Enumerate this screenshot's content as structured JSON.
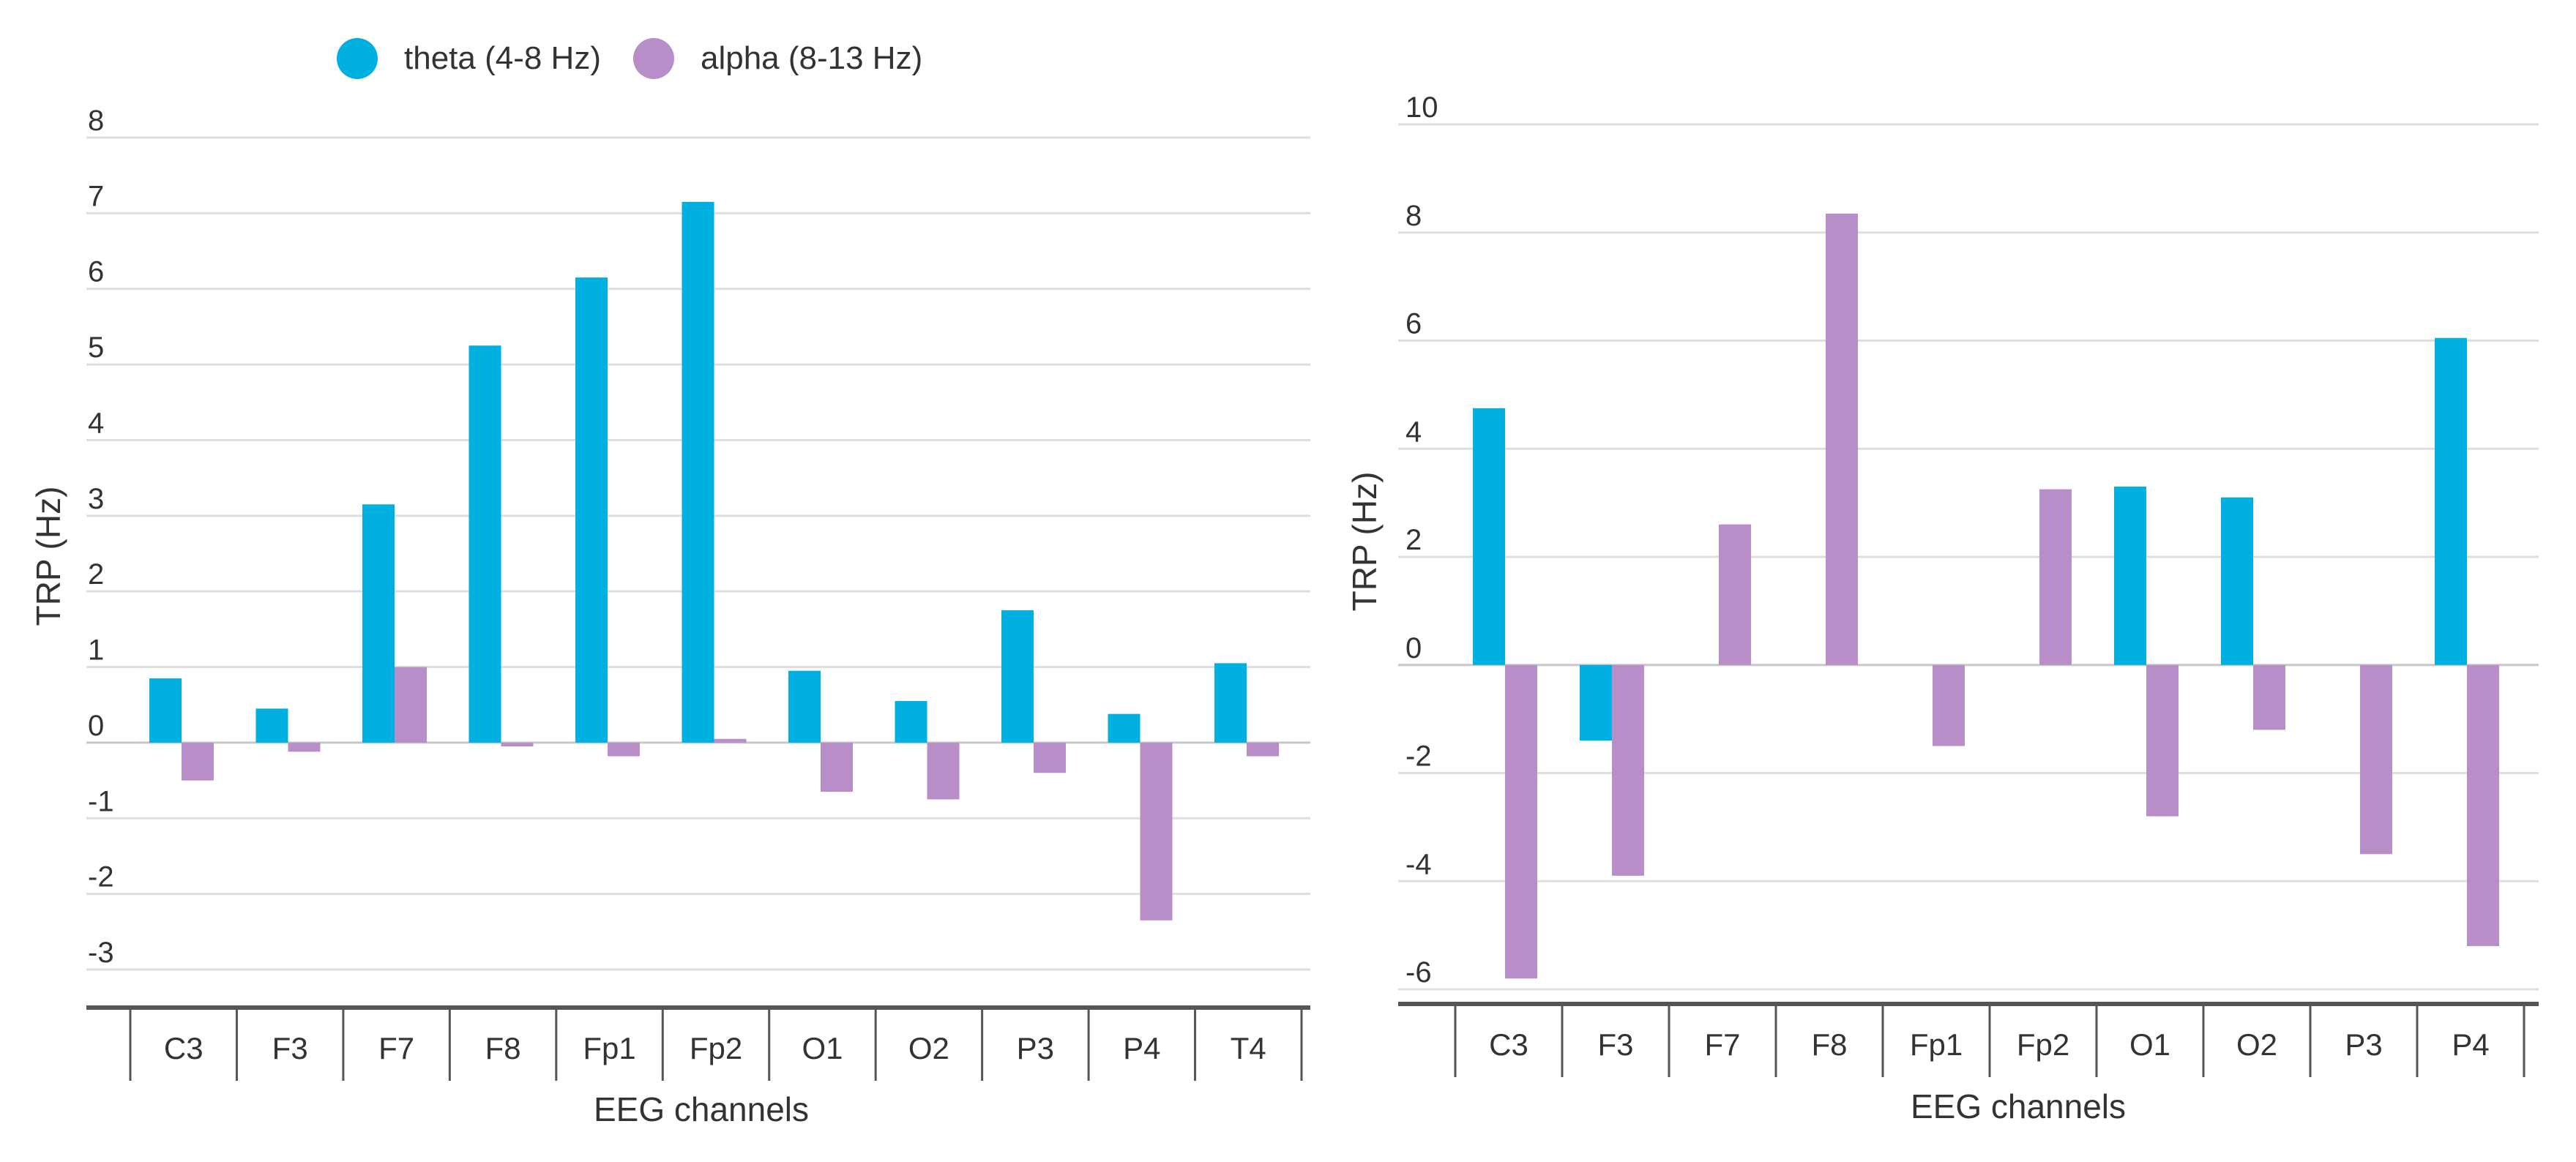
{
  "legend": {
    "items": [
      {
        "label": "theta (4-8 Hz)",
        "color": "#00b0e0"
      },
      {
        "label": "alpha (8-13 Hz)",
        "color": "#b88ec8"
      }
    ]
  },
  "chart_data": [
    {
      "type": "bar",
      "title": "",
      "xlabel": "EEG channels",
      "ylabel": "TRP (Hz)",
      "ylim": [
        -3,
        8
      ],
      "yticks": [
        8,
        7,
        6,
        5,
        4,
        3,
        2,
        1,
        0,
        -1,
        -2,
        -3
      ],
      "grid": true,
      "legend": "top",
      "categories": [
        "C3",
        "F3",
        "F7",
        "F8",
        "Fp1",
        "Fp2",
        "O1",
        "O2",
        "P3",
        "P4",
        "T4"
      ],
      "series": [
        {
          "name": "theta (4-8 Hz)",
          "color": "#00b0e0",
          "values": [
            0.85,
            0.45,
            3.15,
            5.25,
            6.15,
            7.15,
            0.95,
            0.55,
            1.75,
            0.38,
            1.05
          ]
        },
        {
          "name": "alpha (8-13 Hz)",
          "color": "#b88ec8",
          "values": [
            -0.5,
            -0.12,
            1.0,
            -0.05,
            -0.18,
            0.05,
            -0.65,
            -0.75,
            -0.4,
            -2.35,
            -0.18
          ]
        }
      ]
    },
    {
      "type": "bar",
      "title": "",
      "xlabel": "EEG channels",
      "ylabel": "TRP (Hz)",
      "ylim": [
        -6,
        10
      ],
      "yticks": [
        10,
        8,
        6,
        4,
        2,
        0,
        -2,
        -4,
        -6
      ],
      "grid": true,
      "legend": "top",
      "categories": [
        "C3",
        "F3",
        "F7",
        "F8",
        "Fp1",
        "Fp2",
        "O1",
        "O2",
        "P3",
        "P4"
      ],
      "series": [
        {
          "name": "theta (4-8 Hz)",
          "color": "#00b0e0",
          "values": [
            4.75,
            -1.4,
            0,
            0,
            0,
            0,
            3.3,
            3.1,
            0,
            6.05
          ]
        },
        {
          "name": "alpha (8-13 Hz)",
          "color": "#b88ec8",
          "values": [
            -5.8,
            -3.9,
            2.6,
            8.35,
            -1.5,
            3.25,
            -2.8,
            -1.2,
            -3.5,
            -5.2
          ]
        }
      ]
    }
  ]
}
